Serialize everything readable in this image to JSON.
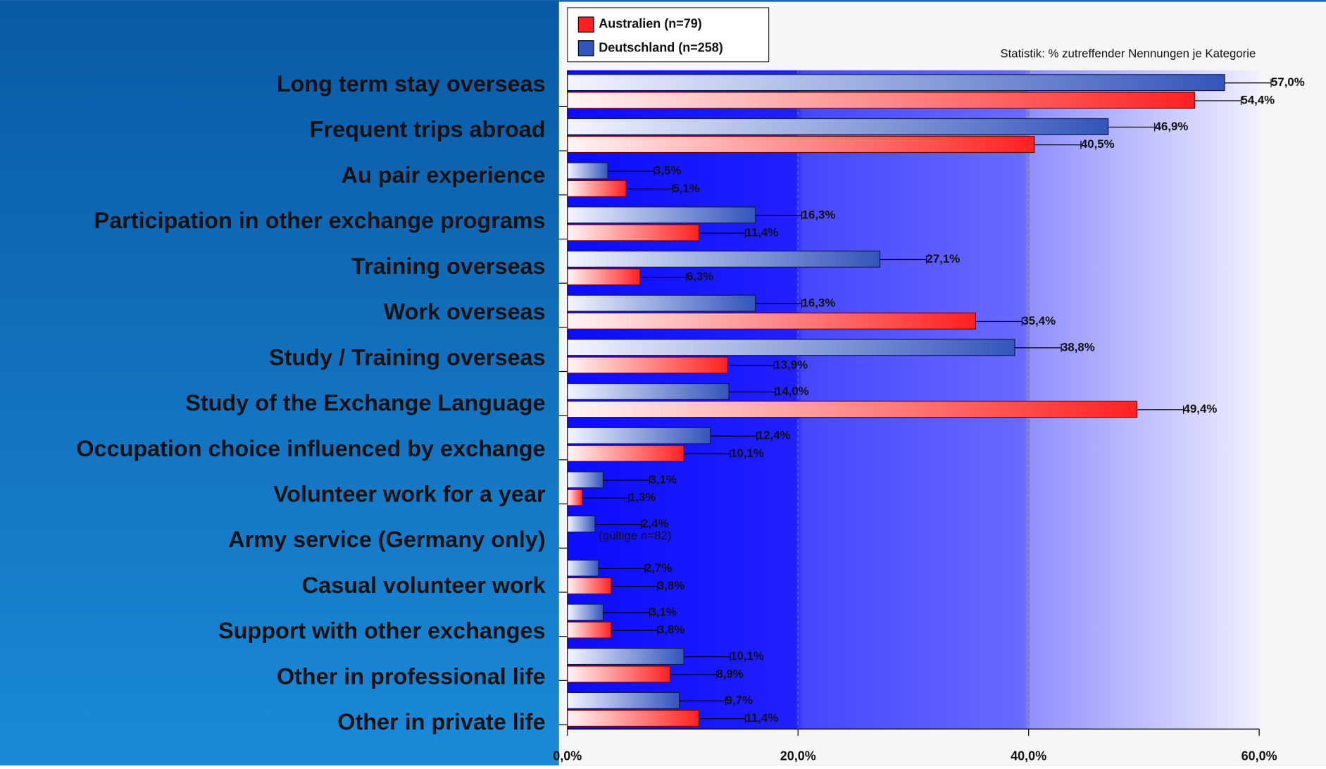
{
  "chart_data": {
    "type": "bar",
    "orientation": "horizontal",
    "subtitle": "Statistik: % zutreffender Nennungen je Kategorie",
    "categories": [
      "Long term stay overseas",
      "Frequent trips abroad",
      "Au pair experience",
      "Participation in other exchange programs",
      "Training overseas",
      "Work overseas",
      "Study / Training overseas",
      "Study of the Exchange  Language",
      "Occupation choice influenced by exchange",
      "Volunteer work for a year",
      "Army service (Germany only)",
      "Casual volunteer work",
      "Support with other exchanges",
      "Other in professional life",
      "Other in private life"
    ],
    "series": [
      {
        "name": "Australien (n=79)",
        "color": "#ff2020",
        "values": [
          54.4,
          40.5,
          5.1,
          11.4,
          6.3,
          35.4,
          13.9,
          49.4,
          10.1,
          1.3,
          null,
          3.8,
          3.8,
          8.9,
          11.4
        ],
        "value_labels": [
          "54,4%",
          "40,5%",
          "5,1%",
          "11,4%",
          "6,3%",
          "35,4%",
          "13,9%",
          "49,4%",
          "10,1%",
          "1,3%",
          null,
          "3,8%",
          "3,8%",
          "8,9%",
          "11,4%"
        ]
      },
      {
        "name": "Deutschland (n=258)",
        "color": "#3355bb",
        "values": [
          57.0,
          46.9,
          3.5,
          16.3,
          27.1,
          16.3,
          38.8,
          14.0,
          12.4,
          3.1,
          2.4,
          2.7,
          3.1,
          10.1,
          9.7
        ],
        "value_labels": [
          "57,0%",
          "46,9%",
          "3,5%",
          "16,3%",
          "27,1%",
          "16,3%",
          "38,8%",
          "14,0%",
          "12,4%",
          "3,1%",
          "2,4%",
          "2,7%",
          "3,1%",
          "10,1%",
          "9,7%"
        ]
      }
    ],
    "annotation": "(gültige n=82)",
    "xlim": [
      0,
      60
    ],
    "xticks": [
      {
        "value": 0,
        "label": "0,0%"
      },
      {
        "value": 20,
        "label": "20,0%"
      },
      {
        "value": 40,
        "label": "40,0%"
      },
      {
        "value": 60,
        "label": "60,0%"
      }
    ],
    "grid": true,
    "legend": "upper left"
  }
}
